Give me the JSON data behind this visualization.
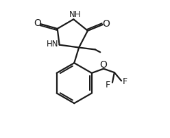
{
  "bg_color": "#ffffff",
  "line_color": "#1a1a1a",
  "line_width": 1.6,
  "font_size": 8.5,
  "figsize": [
    2.48,
    2.02
  ],
  "dpi": 100,
  "xlim": [
    0,
    10
  ],
  "ylim": [
    0,
    10.2
  ]
}
